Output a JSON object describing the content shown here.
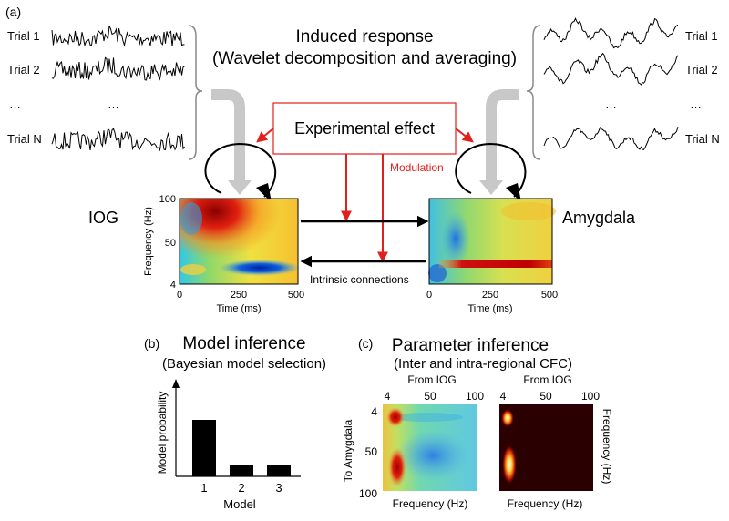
{
  "panel_labels": {
    "a": "(a)",
    "b": "(b)",
    "c": "(c)"
  },
  "induced": {
    "line1": "Induced response",
    "line2": "(Wavelet decomposition and averaging)"
  },
  "trials_left": [
    "Trial 1",
    "Trial 2",
    "…",
    "Trial N"
  ],
  "trials_right": [
    "Trial 1",
    "Trial 2",
    "…",
    "Trial N"
  ],
  "ellipsis": "…",
  "experimental_effect": "Experimental effect",
  "modulation": "Modulation",
  "region_left": "IOG",
  "region_right": "Amygdala",
  "intrinsic": "Intrinsic connections",
  "tf_left": {
    "ylabel": "Frequency (Hz)",
    "yticks": [
      "100",
      "50",
      "4"
    ],
    "xticks": [
      "0",
      "250",
      "500"
    ],
    "xlabel": "Time (ms)"
  },
  "tf_right": {
    "xticks": [
      "0",
      "250",
      "500"
    ],
    "xlabel": "Time (ms)"
  },
  "model_inference": {
    "title": "Model inference",
    "subtitle": "(Bayesian model selection)"
  },
  "parameter_inference": {
    "title": "Parameter inference",
    "subtitle": "(Inter and intra-regional CFC)"
  },
  "cfc_left": {
    "from_label": "From IOG",
    "xticks": [
      "4",
      "50",
      "100"
    ],
    "yticks": [
      "4",
      "50",
      "100"
    ],
    "ylabel": "To Amygdala",
    "xlabel": "Frequency (Hz)"
  },
  "cfc_right": {
    "from_label": "From IOG",
    "xticks": [
      "4",
      "50",
      "100"
    ],
    "ylabel": "Frequency (Hz)",
    "xlabel": "Frequency (Hz)"
  },
  "colors": {
    "red": "#e0201b",
    "arrow_grey": "#c8c8c8"
  },
  "chart_data": {
    "type": "bar",
    "categories": [
      "1",
      "2",
      "3"
    ],
    "values": [
      0.62,
      0.13,
      0.13
    ],
    "xlabel": "Model",
    "ylabel": "Model probability",
    "ylim": [
      0,
      1
    ]
  }
}
